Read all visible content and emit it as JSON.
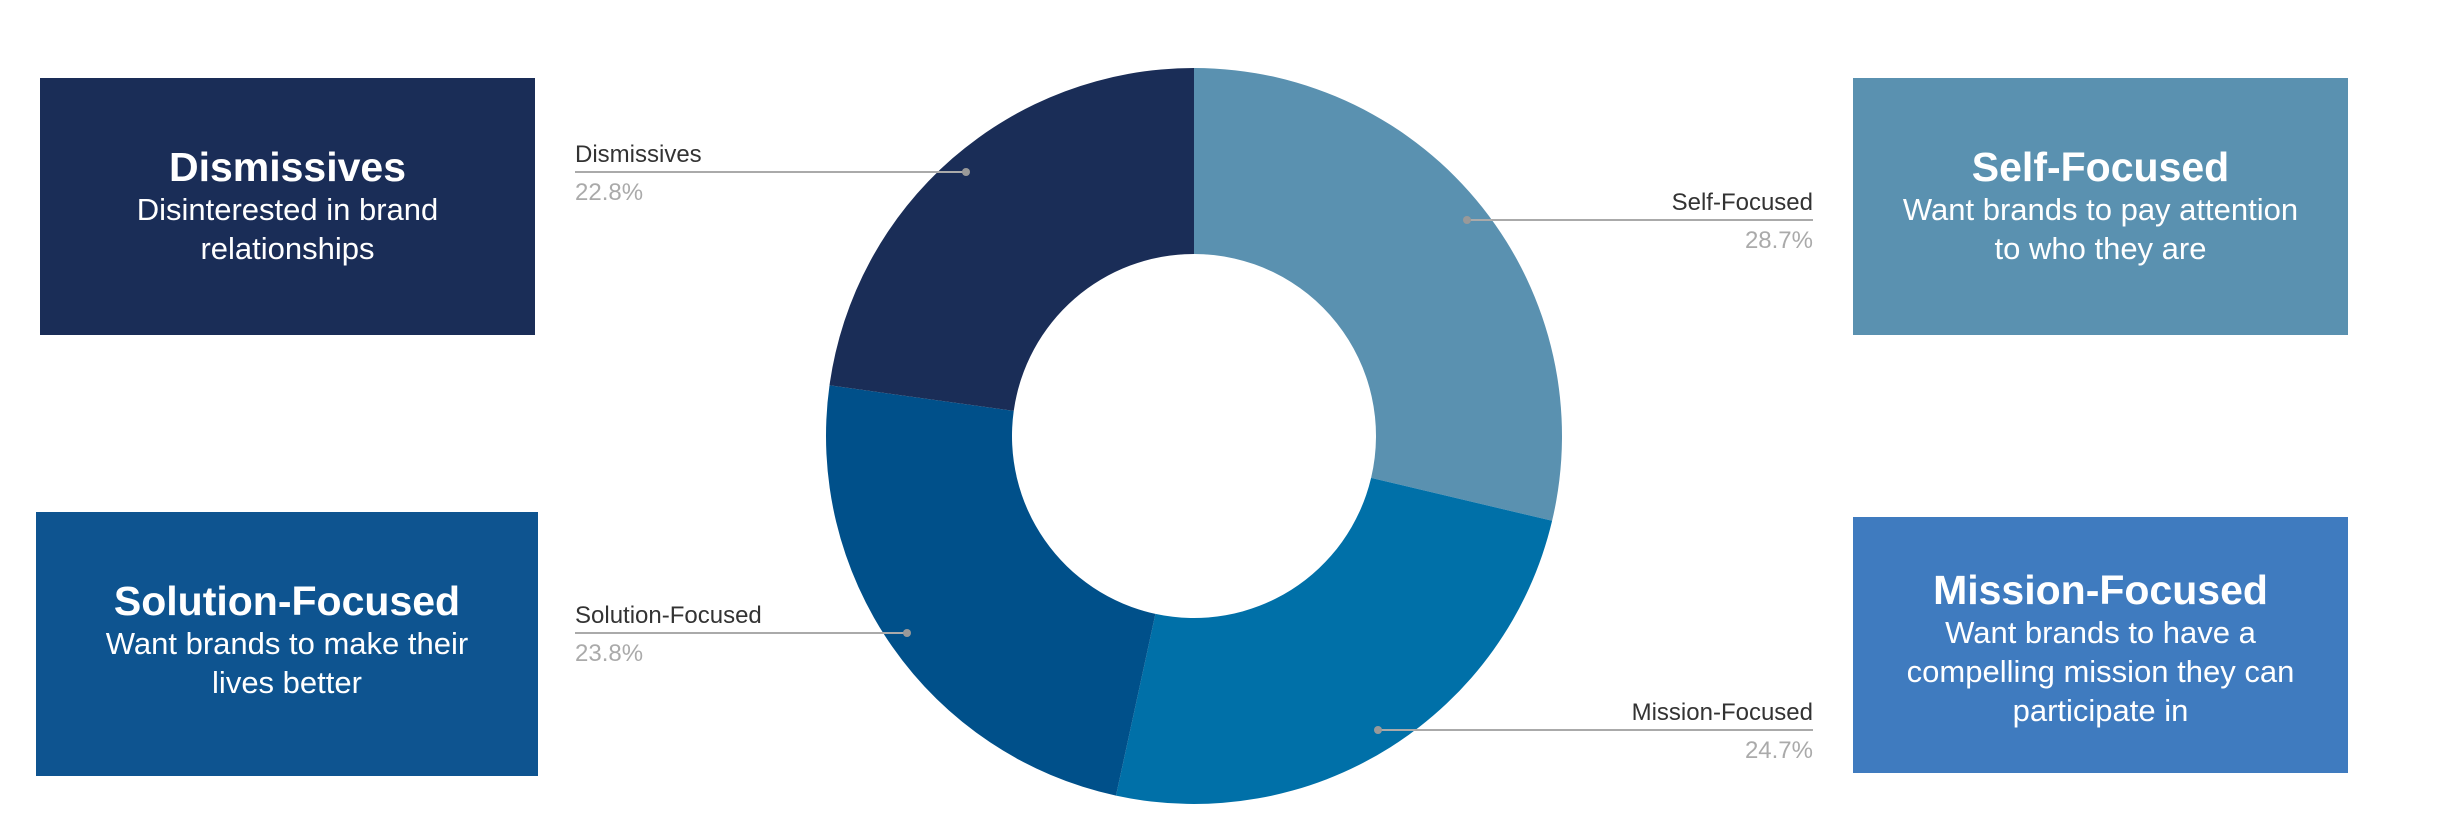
{
  "chart_data": {
    "type": "donut",
    "categories": [
      "Self-Focused",
      "Mission-Focused",
      "Solution-Focused",
      "Dismissives"
    ],
    "values": [
      28.7,
      24.7,
      23.8,
      22.8
    ],
    "value_labels": [
      "28.7%",
      "24.7%",
      "23.8%",
      "22.8%"
    ],
    "colors": [
      "#5a91b0",
      "#0070a8",
      "#00508a",
      "#1a2d57"
    ]
  },
  "cards": [
    {
      "title": "Dismissives",
      "text": "Disinterested in brand relationships",
      "color": "#1a2d57"
    },
    {
      "title": "Solution-Focused",
      "text": "Want brands to make their lives better",
      "color": "#0e5490"
    },
    {
      "title": "Self-Focused",
      "text": "Want brands to pay attention to who they are",
      "color": "#5a91b0"
    },
    {
      "title": "Mission-Focused",
      "text": "Want brands to have a compelling mission they can participate in",
      "color": "#3f7bbf"
    }
  ]
}
